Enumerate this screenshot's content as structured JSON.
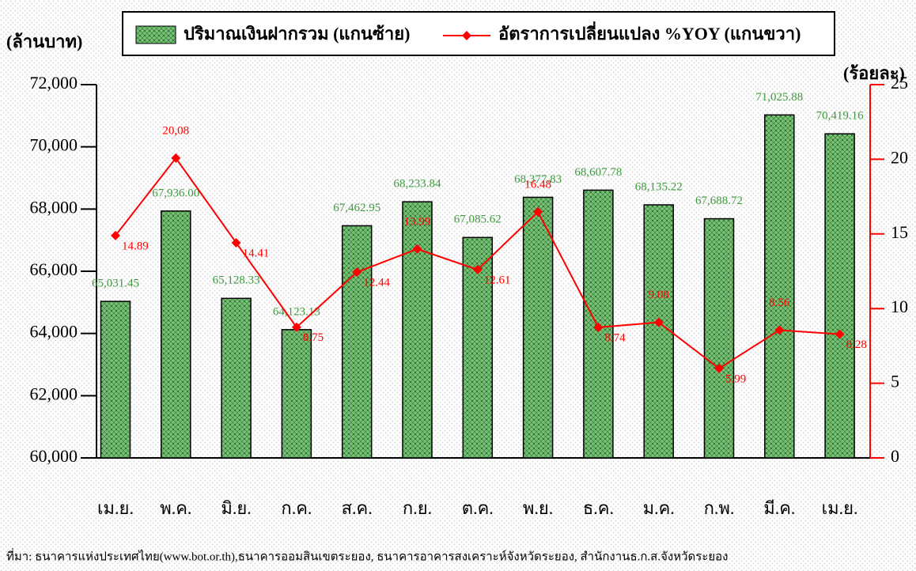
{
  "chart_data": {
    "type": "combo",
    "y_label": "(ล้านบาท)",
    "y2_label": "(ร้อยละ)",
    "categories": [
      "เม.ย.",
      "พ.ค.",
      "มิ.ย.",
      "ก.ค.",
      "ส.ค.",
      "ก.ย.",
      "ต.ค.",
      "พ.ย.",
      "ธ.ค.",
      "ม.ค.",
      "ก.พ.",
      "มี.ค.",
      "เม.ย."
    ],
    "series": [
      {
        "name": "ปริมาณเงินฝากรวม (แกนซ้าย)",
        "kind": "bar",
        "color": "#3f9a3f",
        "values": [
          65031.45,
          67936.0,
          65128.33,
          64123.13,
          67462.95,
          68233.84,
          67085.62,
          68377.83,
          68607.78,
          68135.22,
          67688.72,
          71025.88,
          70419.16
        ],
        "value_labels": [
          "65,031.45",
          "67,936.00",
          "65,128.33",
          "64,123.13",
          "67,462.95",
          "68,233.84",
          "67,085.62",
          "68,377.83",
          "68,607.78",
          "68,135.22",
          "67,688.72",
          "71,025.88",
          "70,419.16"
        ]
      },
      {
        "name": "อัตราการเปลี่ยนแปลง %YOY (แกนขวา)",
        "kind": "line",
        "axis": "y2",
        "color": "#ff0000",
        "values": [
          14.89,
          20.08,
          14.41,
          8.75,
          12.44,
          13.99,
          12.61,
          16.48,
          8.74,
          9.08,
          5.99,
          8.56,
          8.28
        ],
        "value_labels": [
          "14.89",
          "20,08",
          "14.41",
          "8.75",
          "12.44",
          "13.99",
          "12.61",
          "16.48",
          "8.74",
          "9.08",
          "5.99",
          "8.56",
          "8.28"
        ]
      }
    ],
    "ylim": [
      60000,
      72000
    ],
    "yticks": [
      {
        "value": 60000,
        "label": "60,000"
      },
      {
        "value": 62000,
        "label": "62,000"
      },
      {
        "value": 64000,
        "label": "64,000"
      },
      {
        "value": 66000,
        "label": "66,000"
      },
      {
        "value": 68000,
        "label": "68,000"
      },
      {
        "value": 70000,
        "label": "70,000"
      },
      {
        "value": 72000,
        "label": "72,000"
      }
    ],
    "y2lim": [
      0,
      25
    ],
    "y2ticks": [
      0,
      5,
      10,
      15,
      20,
      25
    ],
    "source": "ที่มา: ธนาคารแห่งประเทศไทย(www.bot.or.th),ธนาคารออมสินเขตระยอง, ธนาคารอาคารสงเคราะห์จังหวัดระยอง, สำนักงานธ.ก.ส.จังหวัดระยอง"
  }
}
